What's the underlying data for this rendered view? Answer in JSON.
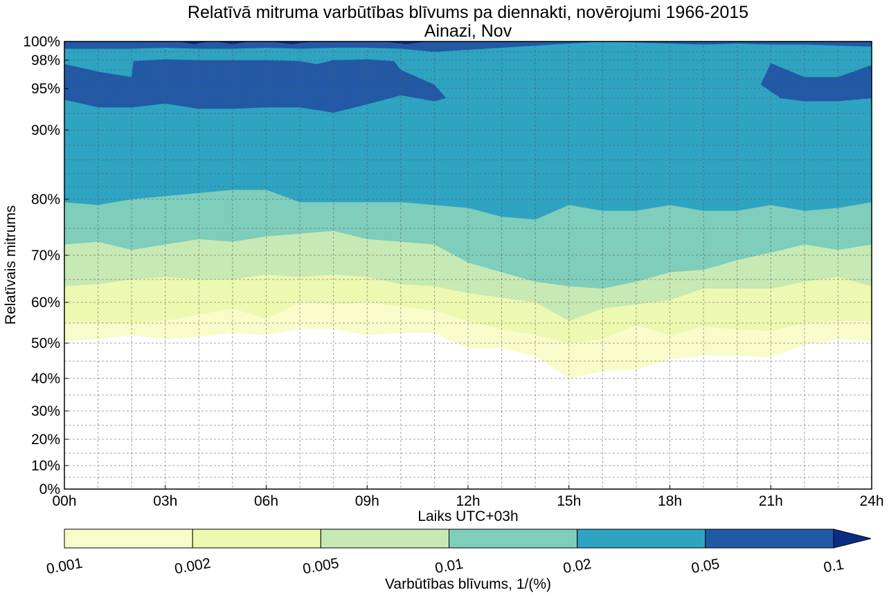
{
  "chart_data": {
    "type": "contourf",
    "title": "Relatīvā mitruma varbūtības blīvums pa diennakti, novērojumi 1966-2015",
    "subtitle": "Ainazi, Nov",
    "xlabel": "Laiks UTC+03h",
    "ylabel": "Relatīvais mitrums",
    "xlim": [
      0,
      24
    ],
    "ylim": [
      0,
      100
    ],
    "grid": true,
    "x_ticks": [
      {
        "value": 0,
        "label": "00h"
      },
      {
        "value": 3,
        "label": "03h"
      },
      {
        "value": 6,
        "label": "06h"
      },
      {
        "value": 9,
        "label": "09h"
      },
      {
        "value": 12,
        "label": "12h"
      },
      {
        "value": 15,
        "label": "15h"
      },
      {
        "value": 18,
        "label": "18h"
      },
      {
        "value": 21,
        "label": "21h"
      },
      {
        "value": 24,
        "label": "24h"
      }
    ],
    "y_ticks": [
      {
        "value": 0,
        "label": "0%"
      },
      {
        "value": 10,
        "label": "10%"
      },
      {
        "value": 20,
        "label": "20%"
      },
      {
        "value": 30,
        "label": "30%"
      },
      {
        "value": 40,
        "label": "40%"
      },
      {
        "value": 50,
        "label": "50%"
      },
      {
        "value": 60,
        "label": "60%"
      },
      {
        "value": 70,
        "label": "70%"
      },
      {
        "value": 80,
        "label": "80%"
      },
      {
        "value": 90,
        "label": "90%"
      },
      {
        "value": 95,
        "label": "95%"
      },
      {
        "value": 98,
        "label": "98%"
      },
      {
        "value": 100,
        "label": "100%"
      }
    ],
    "y_scale_note": "nonlinear (stretched toward 100%)",
    "hours": [
      0,
      1,
      2,
      3,
      4,
      5,
      6,
      7,
      8,
      9,
      10,
      11,
      12,
      13,
      14,
      15,
      16,
      17,
      18,
      19,
      20,
      21,
      22,
      23,
      24
    ],
    "levels": [
      0.001,
      0.002,
      0.005,
      0.01,
      0.02,
      0.05,
      0.1
    ],
    "colors": [
      "#f8fccb",
      "#edf8b1",
      "#c7e9b4",
      "#7fcdbb",
      "#2ea4c2",
      "#2259a6",
      "#0c2c84"
    ],
    "level_lower_bounds_rh": [
      {
        "level": 0.001,
        "values": [
          50.5,
          51,
          52,
          51,
          51.5,
          52.5,
          52,
          53.5,
          53.5,
          52,
          52.5,
          52.5,
          48.5,
          48.5,
          46.5,
          40,
          42,
          42.5,
          45.5,
          46.5,
          46.5,
          46,
          49.5,
          51,
          50.5
        ]
      },
      {
        "level": 0.002,
        "values": [
          55,
          55,
          55,
          55.5,
          57,
          58.5,
          56,
          60,
          59.5,
          60,
          59,
          58,
          55.5,
          53.5,
          52,
          50,
          51,
          54.5,
          52,
          54,
          53.5,
          53,
          55,
          55.5,
          55.5
        ]
      },
      {
        "level": 0.005,
        "values": [
          63.5,
          64,
          65,
          65.5,
          65,
          65,
          66,
          65.5,
          66,
          65.5,
          64,
          63.5,
          62,
          61,
          60,
          55.5,
          58.5,
          59.5,
          60.5,
          63,
          63,
          63,
          64.5,
          65.5,
          63.5
        ]
      },
      {
        "level": 0.01,
        "values": [
          72,
          72.5,
          71,
          72,
          73,
          72.5,
          73.5,
          74,
          74.5,
          73,
          72.5,
          72,
          68.5,
          66.5,
          64.5,
          63.5,
          63,
          64.5,
          66.5,
          67,
          69,
          70.5,
          72,
          71,
          72
        ]
      },
      {
        "level": 0.02,
        "values": [
          79.5,
          79,
          80,
          80.5,
          81,
          81.5,
          81.5,
          79.5,
          79.5,
          79.5,
          79.5,
          79,
          78.5,
          77,
          76.5,
          79,
          78,
          78,
          79,
          78,
          78,
          79,
          78,
          78.5,
          79.5
        ]
      }
    ],
    "high_density_regions": [
      {
        "level": 0.05,
        "hours": [
          0,
          1,
          2,
          2.05,
          3,
          4,
          5,
          6,
          7,
          7.5,
          8,
          9,
          9.8,
          10,
          11,
          11.35,
          11,
          10,
          9.8,
          9,
          8,
          7,
          6,
          5,
          4,
          3,
          2,
          1,
          0
        ],
        "rh": [
          97.6,
          96.8,
          96.2,
          97.9,
          98.1,
          98,
          98,
          98,
          97.9,
          97.6,
          98,
          98.1,
          97.9,
          97,
          95.4,
          94,
          93.6,
          94.3,
          94.1,
          93.2,
          92.1,
          92.8,
          92.8,
          92.6,
          92.6,
          93.3,
          92.8,
          92.8,
          93.8
        ]
      },
      {
        "level": 0.05,
        "hours": [
          20.7,
          21,
          22,
          23,
          24,
          24,
          23,
          22,
          21.3,
          20.7
        ],
        "rh": [
          95.4,
          97.7,
          96.2,
          96.2,
          97.5,
          94,
          93.6,
          93.6,
          94,
          95.4
        ]
      },
      {
        "level": 0.05,
        "hours": [
          0,
          24,
          24,
          23,
          22,
          21,
          20,
          19,
          18,
          17,
          16,
          15,
          14,
          13,
          12,
          11,
          10,
          9,
          8,
          7,
          6,
          5,
          4,
          3,
          2,
          1,
          0
        ],
        "rh": [
          100,
          100,
          99.5,
          99.6,
          99.7,
          99.7,
          99.8,
          99.7,
          99.8,
          99.9,
          100,
          99.8,
          99.6,
          99.4,
          99.2,
          99.0,
          99.3,
          99.4,
          99.4,
          99.3,
          99.4,
          99.3,
          99.3,
          99.4,
          99.3,
          99.3,
          99.3
        ]
      },
      {
        "level": 0.1,
        "hours": [
          3,
          4,
          5,
          6,
          7,
          8,
          9,
          10,
          11,
          12,
          3
        ],
        "rh": [
          100,
          100,
          100,
          100,
          100,
          100,
          100,
          100,
          100,
          100,
          100
        ]
      }
    ],
    "colorbar": {
      "label": "Varbūtības blīvums, 1/(%)",
      "tick_labels": [
        "0.001",
        "0.002",
        "0.005",
        "0.01",
        "0.02",
        "0.05",
        "0.1"
      ],
      "extend": "max",
      "orientation": "horizontal"
    }
  }
}
